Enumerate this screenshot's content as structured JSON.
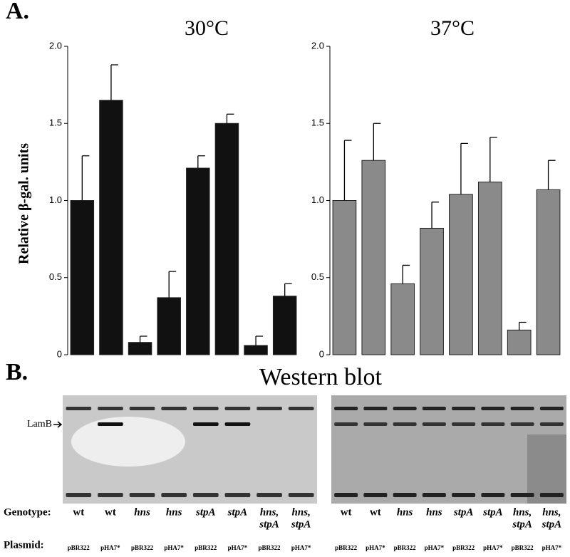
{
  "panel_a": "A.",
  "panel_b": "B.",
  "chart_data": [
    {
      "type": "bar",
      "title": "30°C",
      "y_label": "Relative β-gal. units",
      "values": [
        1.0,
        1.65,
        0.08,
        0.37,
        1.21,
        1.5,
        0.06,
        0.38
      ],
      "errors": [
        0.29,
        0.23,
        0.04,
        0.17,
        0.08,
        0.06,
        0.06,
        0.08
      ],
      "color": "#111111",
      "ylim": [
        0,
        2
      ],
      "yticks": [
        0,
        0.5,
        {
          "value": 1,
          "label": "1.0"
        },
        1.5,
        {
          "value": 2,
          "label": "2.0"
        }
      ]
    },
    {
      "type": "bar",
      "title": "37°C",
      "values": [
        1.0,
        1.26,
        0.46,
        0.82,
        1.04,
        1.12,
        0.16,
        1.07
      ],
      "errors": [
        0.39,
        0.24,
        0.12,
        0.17,
        0.33,
        0.29,
        0.05,
        0.19
      ],
      "color": "#8a8a8a",
      "ylim": [
        0,
        2
      ],
      "yticks": [
        0,
        0.5,
        {
          "value": 1,
          "label": "1.0"
        },
        1.5,
        {
          "value": 2,
          "label": "2.0"
        }
      ]
    }
  ],
  "blot": {
    "title": "Western blot",
    "band_label": "LamB",
    "genotype_label": "Genotype:",
    "plasmid_label": "Plasmid:",
    "genotypes": [
      [
        "wt"
      ],
      [
        "wt"
      ],
      [
        "hns"
      ],
      [
        "hns"
      ],
      [
        "stpA"
      ],
      [
        "stpA"
      ],
      [
        "hns,",
        "stpA"
      ],
      [
        "hns,",
        "stpA"
      ]
    ],
    "plasmids": [
      "pBR322",
      "pHA7*",
      "pBR322",
      "pHA7*",
      "pBR322",
      "pHA7*",
      "pBR322",
      "pHA7*"
    ]
  }
}
